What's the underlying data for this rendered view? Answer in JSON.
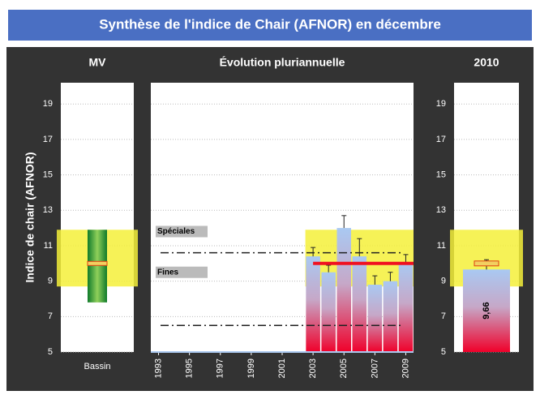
{
  "title": "Synthèse de l'indice de Chair (AFNOR) en décembre",
  "chart_data": [
    {
      "type": "range",
      "title": "MV",
      "ylabel": "Indice de chair (AFNOR)",
      "categories": [
        "Bassin"
      ],
      "low": [
        7.8
      ],
      "high": [
        11.9
      ],
      "median": [
        10.0
      ],
      "band": [
        8.7,
        11.9
      ],
      "ylim": [
        5,
        20.2
      ],
      "yticks": [
        5,
        7,
        9,
        11,
        13,
        15,
        17,
        19
      ]
    },
    {
      "type": "bar",
      "title": "Évolution pluriannuelle",
      "categories": [
        "1993",
        null,
        "1995",
        null,
        "1997",
        null,
        "1999",
        null,
        "2001",
        null,
        "2003",
        null,
        "2005",
        null,
        "2007",
        null,
        "2009"
      ],
      "values": [
        null,
        null,
        null,
        null,
        null,
        null,
        null,
        null,
        null,
        null,
        10.4,
        9.5,
        12.0,
        10.4,
        8.8,
        9.0,
        10.0
      ],
      "errors": [
        null,
        null,
        null,
        null,
        null,
        null,
        null,
        null,
        null,
        null,
        0.5,
        0.4,
        0.7,
        1.0,
        0.5,
        0.5,
        0.5
      ],
      "mean": 10.0,
      "band": [
        8.7,
        11.9
      ],
      "thresholds": [
        {
          "label": "Spéciales",
          "value": 10.6
        },
        {
          "label": "Fines",
          "value": 6.5
        }
      ],
      "ylim": [
        5,
        20.2
      ],
      "yticks": [
        5,
        7,
        9,
        11,
        13,
        15,
        17,
        19
      ]
    },
    {
      "type": "bar",
      "title": "2010",
      "values": [
        9.66
      ],
      "value_labels": [
        "9,66"
      ],
      "errors": [
        0.55
      ],
      "median": [
        10.0
      ],
      "band": [
        8.7,
        11.9
      ],
      "ylim": [
        5,
        20.2
      ],
      "yticks": [
        5,
        7,
        9,
        11,
        13,
        15,
        17,
        19
      ]
    }
  ]
}
